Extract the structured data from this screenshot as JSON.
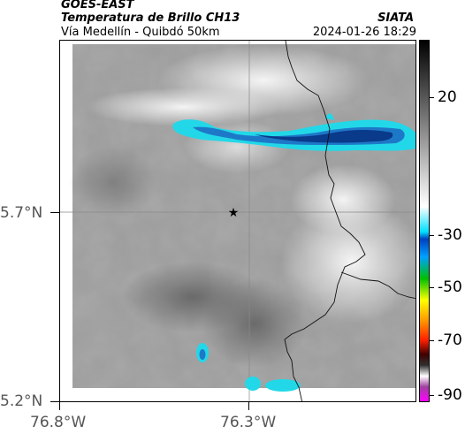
{
  "header": {
    "satellite": "GOES-EAST",
    "product": "Temperatura de Brillo CH13",
    "region": "Vía Medellín - Quibdó 50km",
    "org": "SIATA",
    "datetime": "2024-01-26 18:29"
  },
  "map": {
    "lat_ticks": [
      "5.7°N",
      "5.2°N"
    ],
    "lon_ticks": [
      "76.8°W",
      "76.3°W"
    ],
    "marker": "star",
    "colors": {
      "cloud_dark": "#0a3a8a",
      "cloud_mid": "#1e78c8",
      "cloud_light": "#22d8e8",
      "border": "#000000"
    }
  },
  "colorbar": {
    "labels": [
      "20",
      "-30",
      "-50",
      "-70",
      "-90"
    ],
    "colors": [
      "#ff00ff",
      "#a040a0",
      "#ffffff",
      "#000000",
      "#ff0000",
      "#ffff00",
      "#00c000",
      "#00e0ff",
      "#0040ff",
      "#ffffff",
      "#000000"
    ]
  }
}
